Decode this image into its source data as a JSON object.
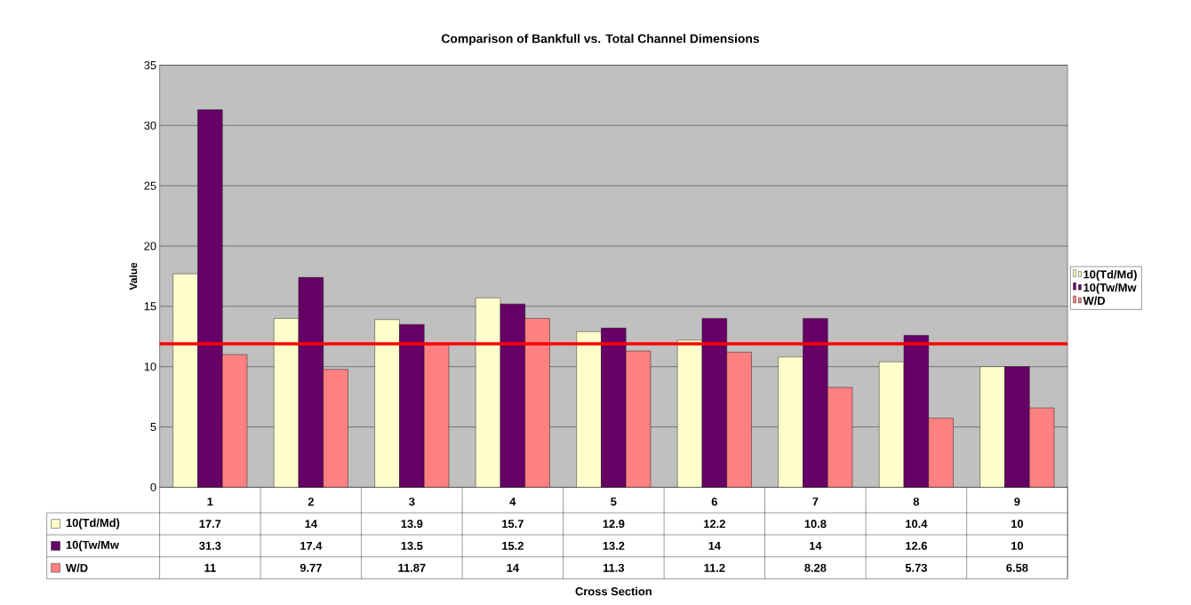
{
  "chart_data": {
    "type": "bar",
    "title": "Comparison of Bankfull vs. Total Channel Dimensions",
    "annotations": [
      "Cross Section"
    ],
    "ylabel": "Value",
    "categories": [
      "1",
      "2",
      "3",
      "4",
      "5",
      "6",
      "7",
      "8",
      "9"
    ],
    "series": [
      {
        "name": "10(Td/Md)",
        "color": "#ffffcc",
        "values": [
          17.7,
          14,
          13.9,
          15.7,
          12.9,
          12.2,
          10.8,
          10.4,
          10
        ]
      },
      {
        "name": "10(Tw/Mw",
        "color": "#660066",
        "values": [
          31.3,
          17.4,
          13.5,
          15.2,
          13.2,
          14,
          14,
          12.6,
          10
        ]
      },
      {
        "name": "W/D",
        "color": "#ff8080",
        "values": [
          11,
          9.77,
          11.87,
          14,
          11.3,
          11.2,
          8.28,
          5.73,
          6.58
        ]
      }
    ],
    "ylim": [
      0,
      35
    ],
    "yticks": [
      0,
      5,
      10,
      15,
      20,
      25,
      30,
      35
    ],
    "grid": "y",
    "legend": "right",
    "data_labels": true,
    "ref_lines": [
      {
        "axis": "y",
        "value": 11.9,
        "color": "#ff0000"
      }
    ]
  }
}
